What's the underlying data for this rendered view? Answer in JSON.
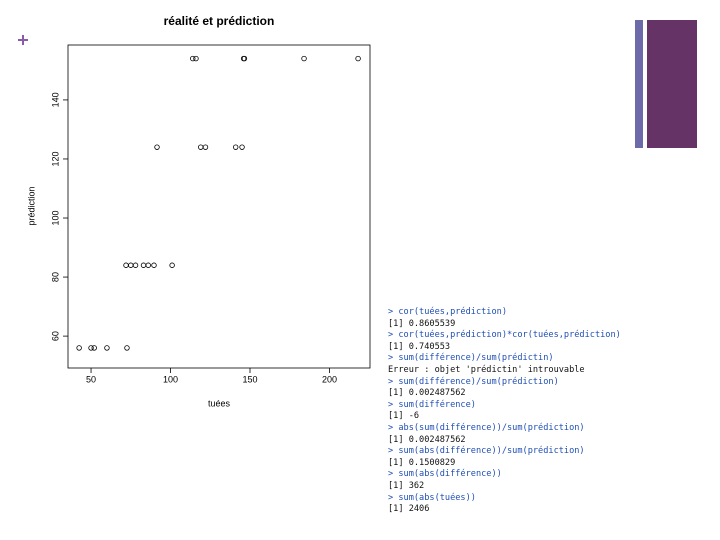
{
  "chart_data": {
    "type": "scatter",
    "title": "réalité et prédiction",
    "x_label": "tuées",
    "y_label": "prédiction",
    "series": [
      {
        "name": null,
        "color": "#000000",
        "x": [
          42.5,
          50,
          52,
          60,
          72.6,
          72,
          75,
          78,
          83,
          86,
          89.6,
          101,
          91.5,
          119,
          122,
          141,
          145,
          114,
          116,
          146,
          146.5,
          184,
          218
        ],
        "values": [
          56,
          56,
          56,
          56,
          56,
          84,
          84,
          84,
          84,
          84,
          84,
          84,
          124,
          124,
          124,
          124,
          124,
          154,
          154,
          154,
          154,
          154,
          154
        ]
      }
    ],
    "xlim": [
      35.5,
      225.5
    ],
    "ylim": [
      49.2,
      158.6
    ],
    "xticks": [
      50,
      100,
      150,
      200
    ],
    "yticks": [
      60,
      80,
      100,
      120,
      140
    ],
    "grid": false
  },
  "console": [
    "> cor(tuées,prédiction)",
    "[1] 0.8605539",
    "> cor(tuées,prédiction)*cor(tuées,prédiction)",
    "[1] 0.740553",
    "> sum(différence)/sum(prédictin)",
    "Erreur : objet 'prédictin' introuvable",
    "> sum(différence)/sum(prédiction)",
    "[1] 0.002487562",
    "> sum(différence)",
    "[1] -6",
    "> abs(sum(différence))/sum(prédiction)",
    "[1] 0.002487562",
    "> sum(abs(différence))/sum(prédiction)",
    "[1] 0.1500829",
    "> sum(abs(différence))",
    "[1] 362",
    "> sum(abs(tuées))",
    "[1] 2406"
  ]
}
